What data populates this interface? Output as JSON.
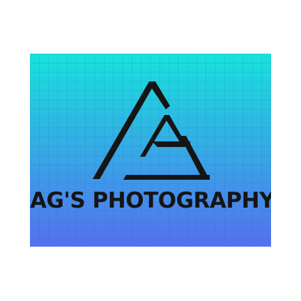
{
  "logo": {
    "brand_name": "AG'S PHOTOGRAPHY",
    "mark_description": "stylized-AG-triangle-mark"
  },
  "colors": {
    "gradient_top": "#17e3db",
    "gradient_bottom": "#5570ef",
    "grid_line": "#1e6fb8",
    "ink": "#151515",
    "page_background": "#ffffff"
  }
}
